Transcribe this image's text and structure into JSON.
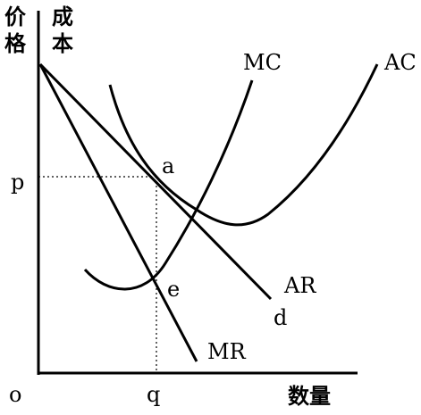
{
  "axes": {
    "price": "价格",
    "cost": "成本",
    "quantity": "数量",
    "origin": "o",
    "p": "p",
    "q": "q"
  },
  "curves": {
    "mc": "MC",
    "ac": "AC",
    "ar": "AR",
    "d": "d",
    "mr": "MR"
  },
  "points": {
    "a": "a",
    "e": "e"
  }
}
